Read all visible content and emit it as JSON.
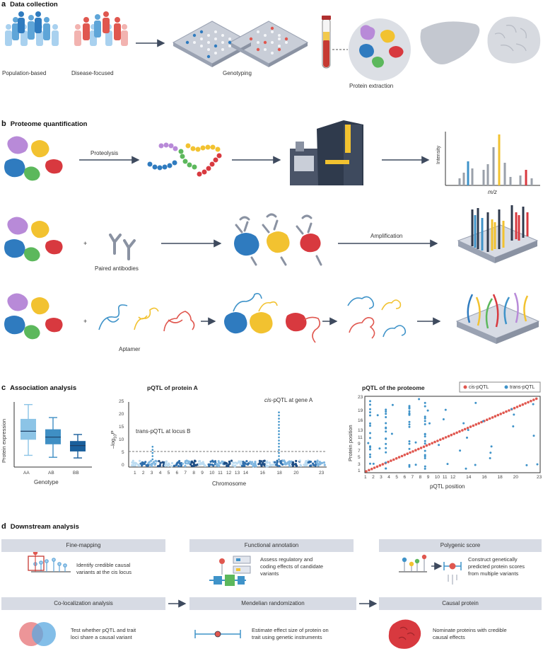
{
  "sections": {
    "a": {
      "letter": "a",
      "title": "Data collection"
    },
    "b": {
      "letter": "b",
      "title": "Proteome quantification"
    },
    "c": {
      "letter": "c",
      "title": "Association analysis"
    },
    "d": {
      "letter": "d",
      "title": "Downstream analysis"
    }
  },
  "panel_a": {
    "population_label": "Population-based",
    "disease_label": "Disease-focused",
    "genotyping_label": "Genotyping",
    "protein_extraction_label": "Protein extraction"
  },
  "panel_b": {
    "proteolysis_label": "Proteolysis",
    "intensity_label": "Intensity",
    "mz_label": "m/z",
    "paired_antibodies_label": "Paired antibodies",
    "amplification_label": "Amplification",
    "aptamer_label": "Aptamer",
    "plus": "+"
  },
  "panel_c": {
    "boxplot": {
      "ylabel": "Protein expression",
      "xlabel": "Genotype",
      "categories": [
        "AA",
        "AB",
        "BB"
      ],
      "colors": [
        "#8cc4e6",
        "#3f8fc4",
        "#1a5f9c"
      ]
    },
    "manhattan": {
      "title": "pQTL of protein A",
      "ylabel_main": "–log",
      "ylabel_sub": "10",
      "ylabel_sup": "P",
      "xlabel": "Chromosome",
      "annot_trans": "trans-pQTL at locus B",
      "annot_cis_em": "cis",
      "annot_cis_rest": "-pQTL at gene A",
      "yticks": [
        "25",
        "20",
        "15",
        "10",
        "5",
        "0"
      ],
      "xticks": [
        "1",
        "2",
        "3",
        "4",
        "5",
        "6",
        "7",
        "8",
        "9",
        "10",
        "11",
        "12",
        "13",
        "14",
        "16",
        "18",
        "20",
        "23"
      ]
    },
    "scatter": {
      "title": "pQTL of the proteome",
      "legend_cis": "cis-pQTL",
      "legend_trans": "trans-pQTL",
      "xlabel": "pQTL position",
      "ylabel": "Protein position",
      "xticks": [
        "1",
        "2",
        "3",
        "4",
        "5",
        "6",
        "7",
        "8",
        "9",
        "10",
        "11",
        "12",
        "14",
        "16",
        "18",
        "20",
        "23"
      ],
      "yticks": [
        "23",
        "19",
        "16",
        "13",
        "11",
        "9",
        "7",
        "5",
        "3",
        "1"
      ],
      "colors": {
        "cis": "#e0574f",
        "trans": "#3f93c9"
      }
    }
  },
  "chart_data": [
    {
      "type": "bar",
      "title": "",
      "xlabel": "Genotype",
      "ylabel": "Protein expression",
      "categories": [
        "AA",
        "AB",
        "BB"
      ],
      "boxes": [
        {
          "category": "AA",
          "min": 0.18,
          "q1": 0.42,
          "median": 0.55,
          "q3": 0.74,
          "max": 0.96
        },
        {
          "category": "AB",
          "min": 0.15,
          "q1": 0.35,
          "median": 0.46,
          "q3": 0.58,
          "max": 0.76
        },
        {
          "category": "BB",
          "min": 0.14,
          "q1": 0.24,
          "median": 0.33,
          "q3": 0.4,
          "max": 0.5
        }
      ]
    },
    {
      "type": "scatter",
      "title": "pQTL of protein A",
      "xlabel": "Chromosome",
      "ylabel": "–log10P",
      "ylim": [
        0,
        25
      ],
      "threshold": 5.5,
      "peaks": [
        {
          "label": "trans-pQTL at locus B",
          "chromosome": 3,
          "max_neglog10p": 8
        },
        {
          "label": "cis-pQTL at gene A",
          "chromosome": 18,
          "max_neglog10p": 21
        }
      ]
    },
    {
      "type": "scatter",
      "title": "pQTL of the proteome",
      "xlabel": "pQTL position",
      "ylabel": "Protein position",
      "xlim": [
        1,
        23
      ],
      "ylim": [
        1,
        23
      ],
      "series": [
        {
          "name": "cis-pQTL",
          "pattern": "diagonal x = y"
        },
        {
          "name": "trans-pQTL",
          "columns_at_pqtl_position": [
            1.5,
            3.5,
            6.5,
            8.5
          ]
        }
      ]
    }
  ],
  "panel_d": {
    "boxes": [
      {
        "banner": "Fine-mapping",
        "desc": [
          "Identify credible causal",
          "variants at the cis locus"
        ]
      },
      {
        "banner": "Functional annotation",
        "desc": [
          "Assess regulatory and",
          "coding effects of candidate",
          "variants"
        ]
      },
      {
        "banner": "Polygenic score",
        "desc": [
          "Construct genetically",
          "predicted protein scores",
          "from multiple variants"
        ]
      },
      {
        "banner": "Co-localization analysis",
        "desc": [
          "Test whether pQTL and trait",
          "loci share a causal variant"
        ]
      },
      {
        "banner": "Mendelian randomization",
        "desc": [
          "Estimate effect size of protein on",
          "trait using genetic instruments"
        ]
      },
      {
        "banner": "Causal protein",
        "desc": [
          "Nominate proteins with credible",
          "causal effects"
        ]
      }
    ]
  }
}
